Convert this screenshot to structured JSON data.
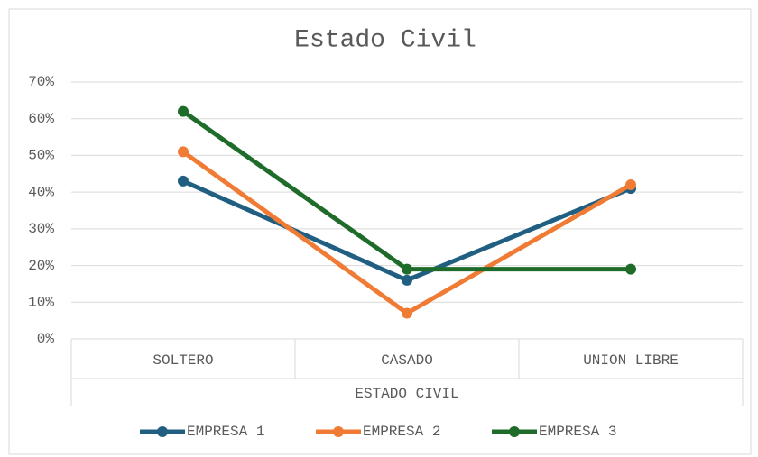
{
  "chart_data": {
    "type": "line",
    "title": "Estado Civil",
    "x_label": "ESTADO CIVIL",
    "categories": [
      "SOLTERO",
      "CASADO",
      "UNION LIBRE"
    ],
    "series": [
      {
        "name": "EMPRESA 1",
        "color": "#215f82",
        "values": [
          43,
          16,
          41
        ]
      },
      {
        "name": "EMPRESA 2",
        "color": "#f07b35",
        "values": [
          51,
          7,
          42
        ]
      },
      {
        "name": "EMPRESA 3",
        "color": "#1e6b2a",
        "values": [
          62,
          19,
          19
        ]
      }
    ],
    "ylim": [
      0,
      70
    ],
    "yticks": [
      {
        "value": 0,
        "label": "0%"
      },
      {
        "value": 10,
        "label": "10%"
      },
      {
        "value": 20,
        "label": "20%"
      },
      {
        "value": 30,
        "label": "30%"
      },
      {
        "value": 40,
        "label": "40%"
      },
      {
        "value": 50,
        "label": "50%"
      },
      {
        "value": 60,
        "label": "60%"
      },
      {
        "value": 70,
        "label": "70%"
      }
    ],
    "grid": true,
    "legend": "bottom"
  }
}
